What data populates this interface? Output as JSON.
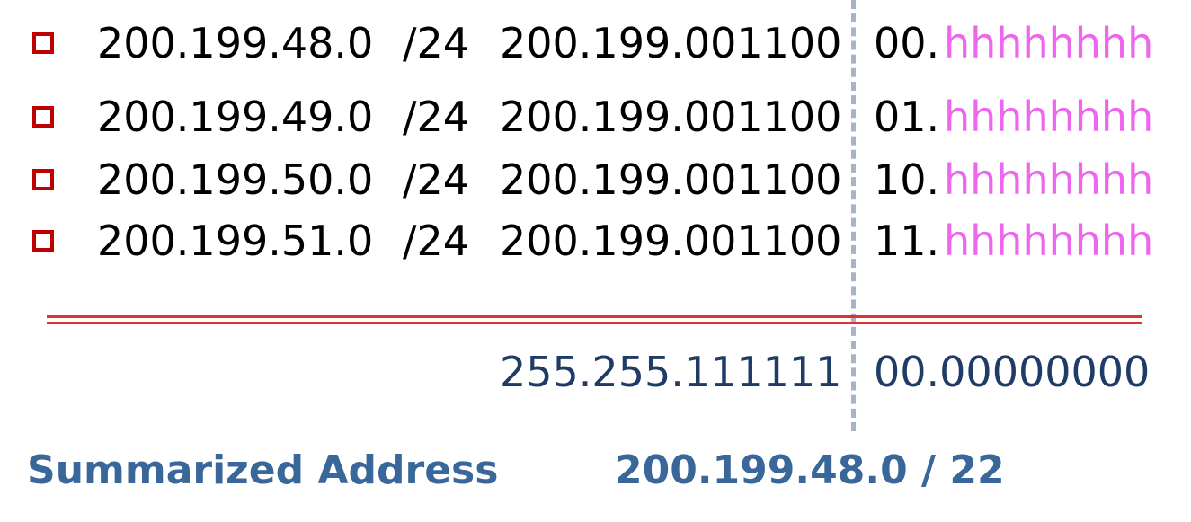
{
  "rows": [
    {
      "network": "200.199.48.0",
      "prefix": "/24",
      "binary": "200.199.001100",
      "octet": "00.",
      "host": "hhhhhhhh"
    },
    {
      "network": "200.199.49.0",
      "prefix": "/24",
      "binary": "200.199.001100",
      "octet": "01.",
      "host": "hhhhhhhh"
    },
    {
      "network": "200.199.50.0",
      "prefix": "/24",
      "binary": "200.199.001100",
      "octet": "10.",
      "host": "hhhhhhhh"
    },
    {
      "network": "200.199.51.0",
      "prefix": "/24",
      "binary": "200.199.001100",
      "octet": "11.",
      "host": "hhhhhhhh"
    }
  ],
  "mask": {
    "left": "255.255.111111",
    "right": "00.00000000"
  },
  "summary": {
    "label": "Summarized Address",
    "value": "200.199.48.0 / 22"
  },
  "colors": {
    "bullet": "#c00000",
    "host_bits": "#ee66ee",
    "mask_text": "#1f3c66",
    "summary_text": "#3a6799",
    "rule": "#e03030",
    "divider": "#a7b3c6"
  }
}
